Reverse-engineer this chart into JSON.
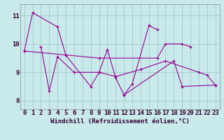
{
  "background_color": "#c8eaea",
  "line_color": "#990099",
  "grid_color": "#aacccc",
  "xlabel": "Windchill (Refroidissement éolien,°C)",
  "ylabel_ticks": [
    8,
    9,
    10,
    11
  ],
  "xlim": [
    -0.5,
    23.5
  ],
  "ylim": [
    7.7,
    11.4
  ],
  "full_lines": [
    {
      "comment": "line1: big zigzag 0->1->4->5->8->9->10->11->12->13->15->16",
      "x": [
        0,
        1,
        4,
        5,
        8,
        9,
        10,
        11,
        12,
        13,
        15,
        16
      ],
      "y": [
        9.75,
        11.1,
        10.6,
        9.6,
        8.5,
        9.0,
        9.8,
        8.8,
        8.2,
        8.6,
        10.65,
        10.5
      ]
    },
    {
      "comment": "line2: 2->3->4->6->9->11->14->17->21->22->23",
      "x": [
        2,
        3,
        4,
        6,
        9,
        11,
        14,
        17,
        21,
        22,
        23
      ],
      "y": [
        9.9,
        8.35,
        9.55,
        9.0,
        9.0,
        8.85,
        9.1,
        9.4,
        9.0,
        8.9,
        8.55
      ]
    },
    {
      "comment": "line3 diagonal high: 0->9->16->17->19->20",
      "x": [
        0,
        9,
        16,
        17,
        19,
        20
      ],
      "y": [
        9.75,
        9.5,
        9.5,
        10.0,
        10.0,
        9.9
      ]
    },
    {
      "x": [
        12,
        18,
        19,
        23
      ],
      "y": [
        8.2,
        9.4,
        8.5,
        8.55
      ]
    }
  ],
  "xtick_labels": [
    "0",
    "1",
    "2",
    "3",
    "4",
    "5",
    "6",
    "7",
    "8",
    "9",
    "10",
    "11",
    "12",
    "13",
    "14",
    "15",
    "16",
    "17",
    "18",
    "19",
    "20",
    "21",
    "22",
    "23"
  ],
  "font_size_xlabel": 6.5,
  "font_size_ticks": 6.5
}
